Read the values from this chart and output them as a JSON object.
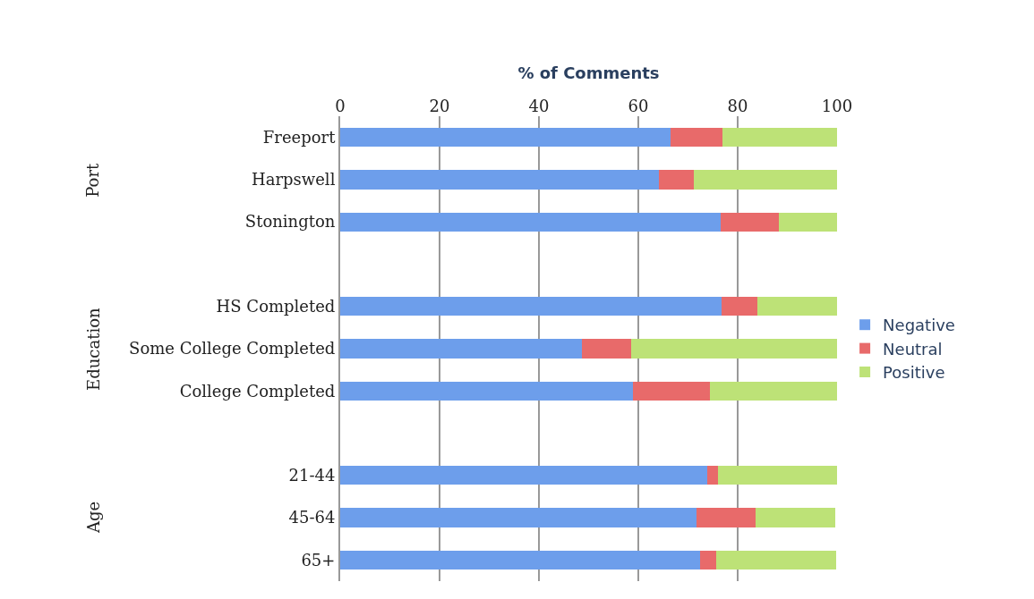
{
  "chart_data": {
    "type": "bar",
    "orientation": "horizontal",
    "stacked": true,
    "xlabel": "% of Comments",
    "categories": [
      "Freeport",
      "Harpswell",
      "Stonington",
      null,
      "HS Completed",
      "Some College Completed",
      "College Completed",
      null,
      "21-44",
      "45-64",
      "65+"
    ],
    "series": [
      {
        "name": "Negative",
        "color": "#6d9eeb",
        "values": [
          66.5,
          64.2,
          76.5,
          null,
          76.8,
          48.6,
          58.9,
          null,
          73.9,
          71.7,
          72.5
        ]
      },
      {
        "name": "Neutral",
        "color": "#e86a6a",
        "values": [
          10.5,
          7.0,
          11.7,
          null,
          7.1,
          10.0,
          15.6,
          null,
          2.1,
          11.9,
          3.1
        ]
      },
      {
        "name": "Positive",
        "color": "#bde277",
        "values": [
          23.0,
          28.8,
          11.8,
          null,
          16.1,
          41.4,
          25.5,
          null,
          24.0,
          16.0,
          24.3
        ]
      }
    ],
    "xlim": [
      0,
      100
    ],
    "xticks": [
      0,
      20,
      40,
      60,
      80,
      100
    ],
    "grid": "x",
    "legend": "right",
    "annotations": [
      "Port",
      "Education",
      "Age"
    ]
  }
}
